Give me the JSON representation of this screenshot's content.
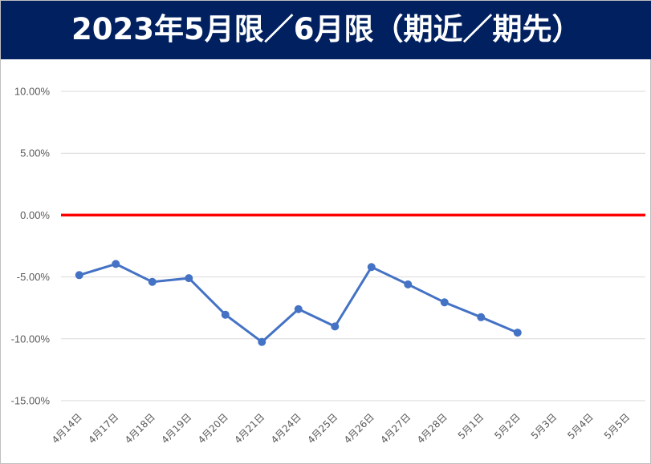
{
  "chart_data": {
    "type": "line",
    "title": "2023年5月限／6月限（期近／期先）",
    "categories": [
      "4月14日",
      "4月17日",
      "4月18日",
      "4月19日",
      "4月20日",
      "4月21日",
      "4月24日",
      "4月25日",
      "4月26日",
      "4月27日",
      "4月28日",
      "5月1日",
      "5月2日",
      "5月3日",
      "5月4日",
      "5月5日"
    ],
    "series": [
      {
        "values": [
          -4.85,
          -3.95,
          -5.4,
          -5.1,
          -8.05,
          -10.25,
          -7.6,
          -9.0,
          -4.2,
          -5.6,
          -7.05,
          -8.25,
          -9.5,
          null,
          null,
          null
        ],
        "color": "#4472c4"
      }
    ],
    "reference_line": {
      "value": 0,
      "color": "#ff0000"
    },
    "yticks": [
      "10.00%",
      "5.00%",
      "0.00%",
      "-5.00%",
      "-10.00%",
      "-15.00%"
    ],
    "ylim": [
      -15,
      10
    ],
    "xlabel": "",
    "ylabel": "",
    "grid": true,
    "legend": "none"
  }
}
